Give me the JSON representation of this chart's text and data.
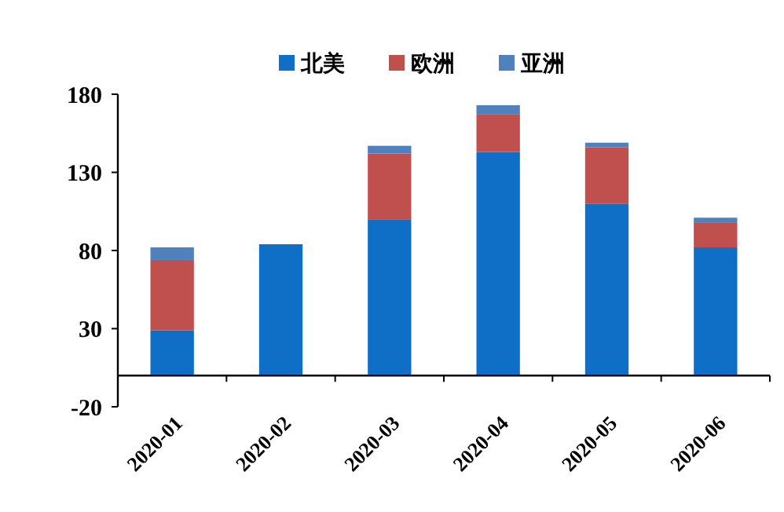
{
  "chart_data": {
    "type": "bar",
    "stacked": true,
    "categories": [
      "2020-01",
      "2020-02",
      "2020-03",
      "2020-04",
      "2020-05",
      "2020-06"
    ],
    "series": [
      {
        "name": "北美",
        "color": "#0f6fc6",
        "values": [
          29,
          84,
          100,
          143,
          110,
          82
        ]
      },
      {
        "name": "欧洲",
        "color": "#c0504d",
        "values": [
          45,
          0,
          42,
          24,
          36,
          16
        ]
      },
      {
        "name": "亚洲",
        "color": "#4f81bd",
        "values": [
          8,
          0,
          5,
          6,
          3,
          3
        ]
      }
    ],
    "ylim": [
      -20,
      180
    ],
    "yticks": [
      -20,
      30,
      80,
      130,
      180
    ],
    "grid": false,
    "legend": "top"
  }
}
